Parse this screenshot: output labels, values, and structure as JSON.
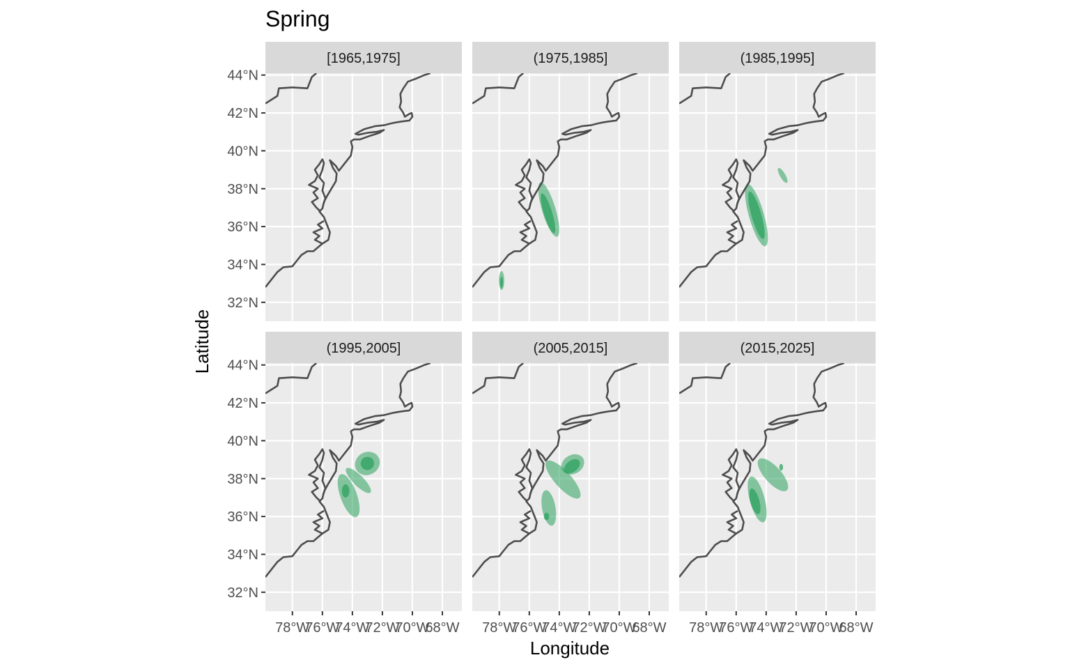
{
  "title": "Spring",
  "x_axis_title": "Longitude",
  "y_axis_title": "Latitude",
  "lat_tick_labels": [
    "32°N",
    "34°N",
    "36°N",
    "38°N",
    "40°N",
    "42°N",
    "44°N"
  ],
  "lon_tick_labels": [
    "78°W",
    "76°W",
    "74°W",
    "72°W",
    "70°W",
    "68°W"
  ],
  "colors": {
    "panel_background": "#ebebeb",
    "strip_background": "#d9d9d9",
    "gridline": "#ffffff",
    "coastline": "#4d4d4d",
    "density_fill": "#2ca25f"
  },
  "panels": [
    {
      "label": "[1965,1975]",
      "density": []
    },
    {
      "label": "(1975,1985]",
      "density": [
        {
          "level": 1,
          "cx": -74.7,
          "cy": 36.9,
          "rx": 0.45,
          "ry": 1.5,
          "rot": -17
        },
        {
          "level": 2,
          "cx": -74.75,
          "cy": 36.7,
          "rx": 0.28,
          "ry": 1.1,
          "rot": -17
        },
        {
          "level": 1,
          "cx": -77.85,
          "cy": 33.15,
          "rx": 0.18,
          "ry": 0.5,
          "rot": 0
        },
        {
          "level": 2,
          "cx": -77.85,
          "cy": 33.05,
          "rx": 0.1,
          "ry": 0.3,
          "rot": 0
        }
      ]
    },
    {
      "label": "(1985,1995]",
      "density": [
        {
          "level": 1,
          "cx": -74.65,
          "cy": 36.6,
          "rx": 0.5,
          "ry": 1.7,
          "rot": -16
        },
        {
          "level": 2,
          "cx": -74.65,
          "cy": 36.6,
          "rx": 0.33,
          "ry": 1.3,
          "rot": -16
        },
        {
          "level": 1,
          "cx": -72.9,
          "cy": 38.7,
          "rx": 0.18,
          "ry": 0.45,
          "rot": -30
        }
      ]
    },
    {
      "label": "(1995,2005]",
      "density": [
        {
          "level": 1,
          "cx": -74.25,
          "cy": 37.1,
          "rx": 0.55,
          "ry": 1.2,
          "rot": -20
        },
        {
          "level": 1,
          "cx": -73.0,
          "cy": 38.8,
          "rx": 0.85,
          "ry": 0.6,
          "rot": -30
        },
        {
          "level": 1,
          "cx": -73.6,
          "cy": 37.9,
          "rx": 0.35,
          "ry": 0.9,
          "rot": -45
        },
        {
          "level": 2,
          "cx": -73.0,
          "cy": 38.8,
          "rx": 0.45,
          "ry": 0.35,
          "rot": -30
        },
        {
          "level": 2,
          "cx": -74.45,
          "cy": 37.35,
          "rx": 0.25,
          "ry": 0.35,
          "rot": 0
        }
      ]
    },
    {
      "label": "(2005,2015]",
      "density": [
        {
          "level": 1,
          "cx": -74.7,
          "cy": 36.45,
          "rx": 0.45,
          "ry": 0.95,
          "rot": -10
        },
        {
          "level": 1,
          "cx": -73.75,
          "cy": 37.95,
          "rx": 0.55,
          "ry": 1.3,
          "rot": -42
        },
        {
          "level": 1,
          "cx": -73.1,
          "cy": 38.75,
          "rx": 0.8,
          "ry": 0.5,
          "rot": -30
        },
        {
          "level": 2,
          "cx": -73.15,
          "cy": 38.65,
          "rx": 0.6,
          "ry": 0.3,
          "rot": -38
        },
        {
          "level": 2,
          "cx": -74.85,
          "cy": 36.0,
          "rx": 0.18,
          "ry": 0.2,
          "rot": 0
        }
      ]
    },
    {
      "label": "(2015,2025]",
      "density": [
        {
          "level": 1,
          "cx": -74.6,
          "cy": 36.9,
          "rx": 0.5,
          "ry": 1.25,
          "rot": -15
        },
        {
          "level": 1,
          "cx": -73.55,
          "cy": 38.2,
          "rx": 0.55,
          "ry": 1.1,
          "rot": -42
        },
        {
          "level": 2,
          "cx": -74.75,
          "cy": 36.8,
          "rx": 0.3,
          "ry": 0.7,
          "rot": -15
        },
        {
          "level": 2,
          "cx": -73.0,
          "cy": 38.6,
          "rx": 0.12,
          "ry": 0.18,
          "rot": 0
        }
      ]
    }
  ]
}
